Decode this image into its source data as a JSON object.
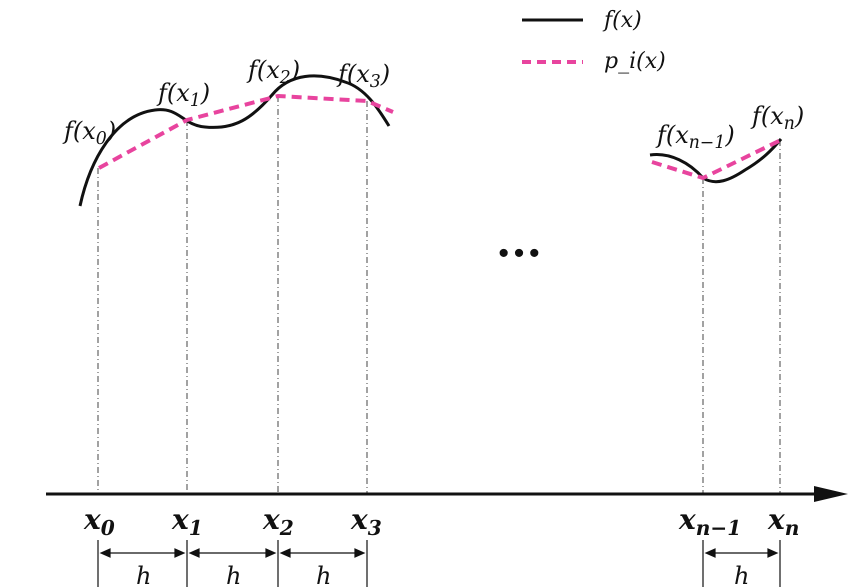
{
  "legend": {
    "items": [
      {
        "label": "f(x)",
        "style": "solid",
        "color": "#111111"
      },
      {
        "label": "p_i(x)",
        "style": "dashed",
        "color": "#e8449e"
      }
    ]
  },
  "colors": {
    "curve": "#111111",
    "interp": "#e8449e",
    "guide": "#444444"
  },
  "points": {
    "left": [
      {
        "fname": "f",
        "var": "x",
        "sub": "0",
        "axis": "x",
        "axis_sub": "0"
      },
      {
        "fname": "f",
        "var": "x",
        "sub": "1",
        "axis": "x",
        "axis_sub": "1"
      },
      {
        "fname": "f",
        "var": "x",
        "sub": "2",
        "axis": "x",
        "axis_sub": "2"
      },
      {
        "fname": "f",
        "var": "x",
        "sub": "3",
        "axis": "x",
        "axis_sub": "3"
      }
    ],
    "right": [
      {
        "fname": "f",
        "var": "x",
        "sub": "n−1",
        "axis": "x",
        "axis_sub": "n−1"
      },
      {
        "fname": "f",
        "var": "x",
        "sub": "n",
        "axis": "x",
        "axis_sub": "n"
      }
    ]
  },
  "ellipsis": "···",
  "spacing_label": "h"
}
